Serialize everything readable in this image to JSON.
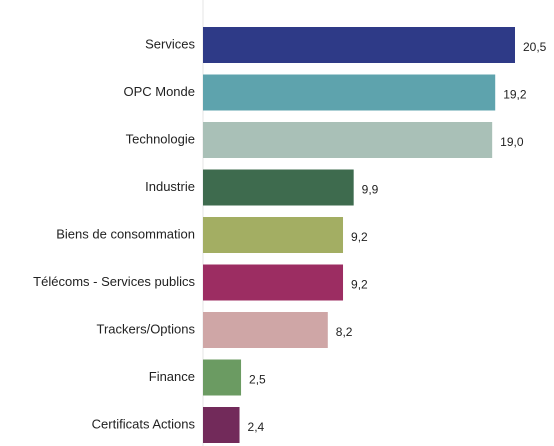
{
  "chart_data": {
    "type": "bar",
    "categories": [
      "Services",
      "OPC Monde",
      "Technologie",
      "Industrie",
      "Biens de consommation",
      "Télécoms - Services publics",
      "Trackers/Options",
      "Finance",
      "Certificats Actions"
    ],
    "values": [
      20.5,
      19.2,
      19.0,
      9.9,
      9.2,
      9.2,
      8.2,
      2.5,
      2.4
    ],
    "value_labels": [
      "20,5",
      "19,2",
      "19,0",
      "9,9",
      "9,2",
      "9,2",
      "8,2",
      "2,5",
      "2,4"
    ],
    "colors": [
      "#2e3a87",
      "#5ea3ad",
      "#a9c0b7",
      "#3e6b4e",
      "#a3ae63",
      "#9c2d62",
      "#cfa6a6",
      "#6b9b62",
      "#722a5a"
    ]
  }
}
